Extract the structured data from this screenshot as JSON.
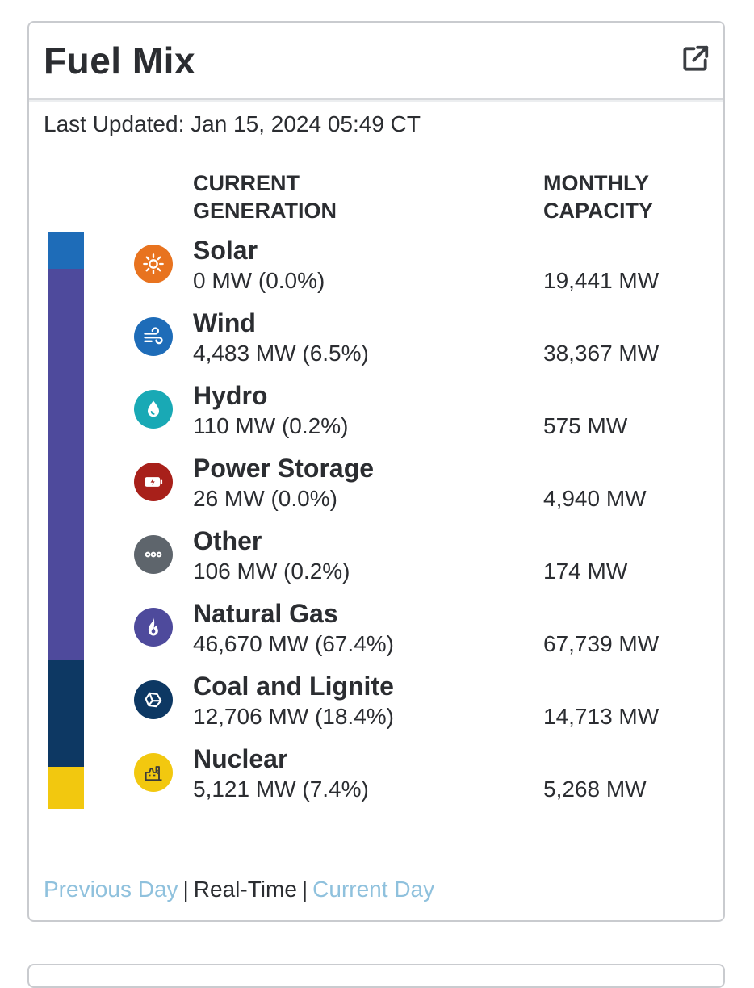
{
  "widget": {
    "title": "Fuel Mix",
    "popout_icon": "external-link-icon",
    "last_updated": "Last Updated: Jan 15, 2024 05:49 CT"
  },
  "columns": {
    "current_generation": "CURRENT GENERATION",
    "monthly_capacity": "MONTHLY CAPACITY"
  },
  "fuels": [
    {
      "name": "Solar",
      "generation": "0 MW (0.0%)",
      "capacity": "19,441 MW",
      "icon": "sun-icon",
      "color": "#e8731f",
      "share": 0.0
    },
    {
      "name": "Wind",
      "generation": "4,483 MW (6.5%)",
      "capacity": "38,367 MW",
      "icon": "wind-icon",
      "color": "#1e6cb8",
      "share": 6.5
    },
    {
      "name": "Hydro",
      "generation": "110 MW (0.2%)",
      "capacity": "575 MW",
      "icon": "water-drop-icon",
      "color": "#19a9b5",
      "share": 0.2
    },
    {
      "name": "Power Storage",
      "generation": "26 MW (0.0%)",
      "capacity": "4,940 MW",
      "icon": "battery-icon",
      "color": "#a8201a",
      "share": 0.0
    },
    {
      "name": "Other",
      "generation": "106 MW (0.2%)",
      "capacity": "174 MW",
      "icon": "more-dots-icon",
      "color": "#5e656c",
      "share": 0.2
    },
    {
      "name": "Natural Gas",
      "generation": "46,670 MW (67.4%)",
      "capacity": "67,739 MW",
      "icon": "flame-icon",
      "color": "#4e4a9c",
      "share": 67.4
    },
    {
      "name": "Coal and Lignite",
      "generation": "12,706 MW (18.4%)",
      "capacity": "14,713 MW",
      "icon": "coal-icon",
      "color": "#0d3863",
      "share": 18.4
    },
    {
      "name": "Nuclear",
      "generation": "5,121 MW (7.4%)",
      "capacity": "5,268 MW",
      "icon": "nuclear-plant-icon",
      "color": "#f2c80f",
      "share": 7.4
    }
  ],
  "footer": {
    "previous_day": "Previous Day",
    "real_time": "Real-Time",
    "current_day": "Current Day",
    "separator": "|"
  }
}
